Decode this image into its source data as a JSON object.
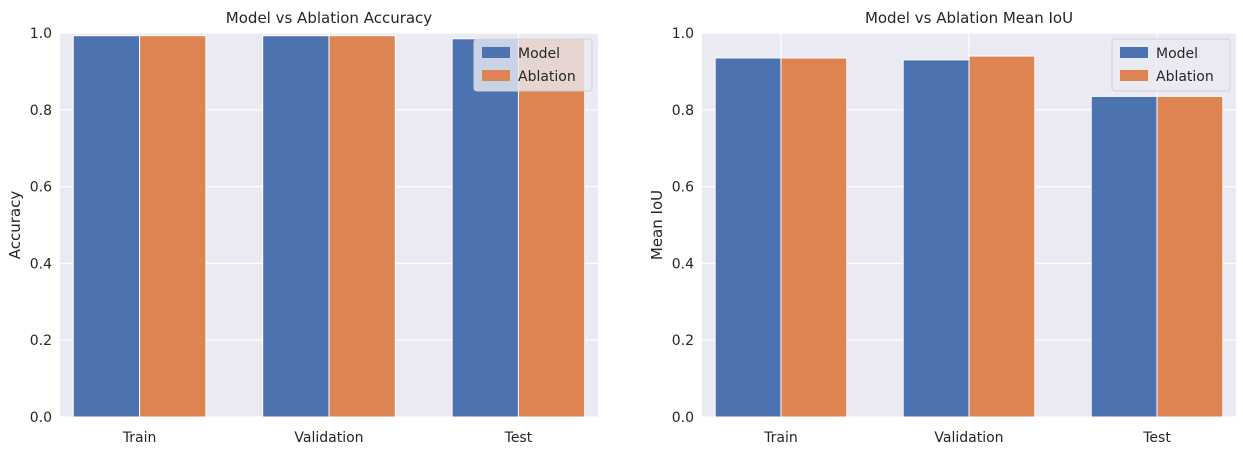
{
  "chart_data": [
    {
      "type": "bar",
      "title": "Model vs Ablation Accuracy",
      "xlabel": "",
      "ylabel": "Accuracy",
      "categories": [
        "Train",
        "Validation",
        "Test"
      ],
      "series": [
        {
          "name": "Model",
          "values": [
            0.993,
            0.993,
            0.985
          ]
        },
        {
          "name": "Ablation",
          "values": [
            0.993,
            0.993,
            0.985
          ]
        }
      ],
      "ylim": [
        0,
        1.0
      ],
      "yticks": [
        "0.0",
        "0.2",
        "0.4",
        "0.6",
        "0.8",
        "1.0"
      ],
      "grid": true,
      "legend": "top-right"
    },
    {
      "type": "bar",
      "title": "Model vs Ablation Mean IoU",
      "xlabel": "",
      "ylabel": "Mean IoU",
      "categories": [
        "Train",
        "Validation",
        "Test"
      ],
      "series": [
        {
          "name": "Model",
          "values": [
            0.935,
            0.93,
            0.835
          ]
        },
        {
          "name": "Ablation",
          "values": [
            0.935,
            0.94,
            0.835
          ]
        }
      ],
      "ylim": [
        0,
        1.0
      ],
      "yticks": [
        "0.0",
        "0.2",
        "0.4",
        "0.6",
        "0.8",
        "1.0"
      ],
      "grid": true,
      "legend": "top-right"
    }
  ],
  "colors": {
    "series": [
      "#4c72b0",
      "#dd8452"
    ],
    "plot_background": "#eaeaf2",
    "grid": "#ffffff"
  }
}
